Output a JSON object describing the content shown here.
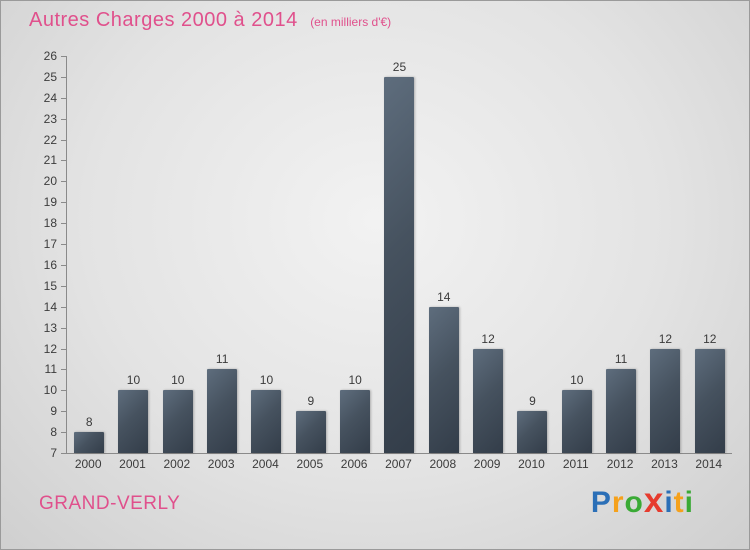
{
  "header": {
    "title": "Autres Charges 2000 à 2014",
    "subtitle": "(en milliers d'€)"
  },
  "footer": {
    "location": "GRAND-VERLY",
    "logo_text": "Proxiti",
    "logo_letters": [
      {
        "ch": "P",
        "color": "#2b6fb7",
        "big": false
      },
      {
        "ch": "r",
        "color": "#f5a11c",
        "big": false
      },
      {
        "ch": "o",
        "color": "#3aaa35",
        "big": false
      },
      {
        "ch": "x",
        "color": "#e63b2e",
        "big": true
      },
      {
        "ch": "i",
        "color": "#2b6fb7",
        "big": false
      },
      {
        "ch": "t",
        "color": "#f5a11c",
        "big": false
      },
      {
        "ch": "i",
        "color": "#3aaa35",
        "big": false
      }
    ]
  },
  "colors": {
    "title_pink": "#e0508c",
    "bar_dark": "#333d49",
    "bar_light": "#5e6d7d",
    "axis_gray": "#8a8a8a"
  },
  "chart_data": {
    "type": "bar",
    "title": "Autres Charges 2000 à 2014",
    "subtitle": "(en milliers d'€)",
    "categories": [
      "2000",
      "2001",
      "2002",
      "2003",
      "2004",
      "2005",
      "2006",
      "2007",
      "2008",
      "2009",
      "2010",
      "2011",
      "2012",
      "2013",
      "2014"
    ],
    "values": [
      8,
      10,
      10,
      11,
      10,
      9,
      10,
      25,
      14,
      12,
      9,
      10,
      11,
      12,
      12
    ],
    "xlabel": "",
    "ylabel": "",
    "ylim": [
      7,
      26
    ],
    "ytick_step": 1,
    "grid": false,
    "legend": false,
    "value_labels": true
  }
}
